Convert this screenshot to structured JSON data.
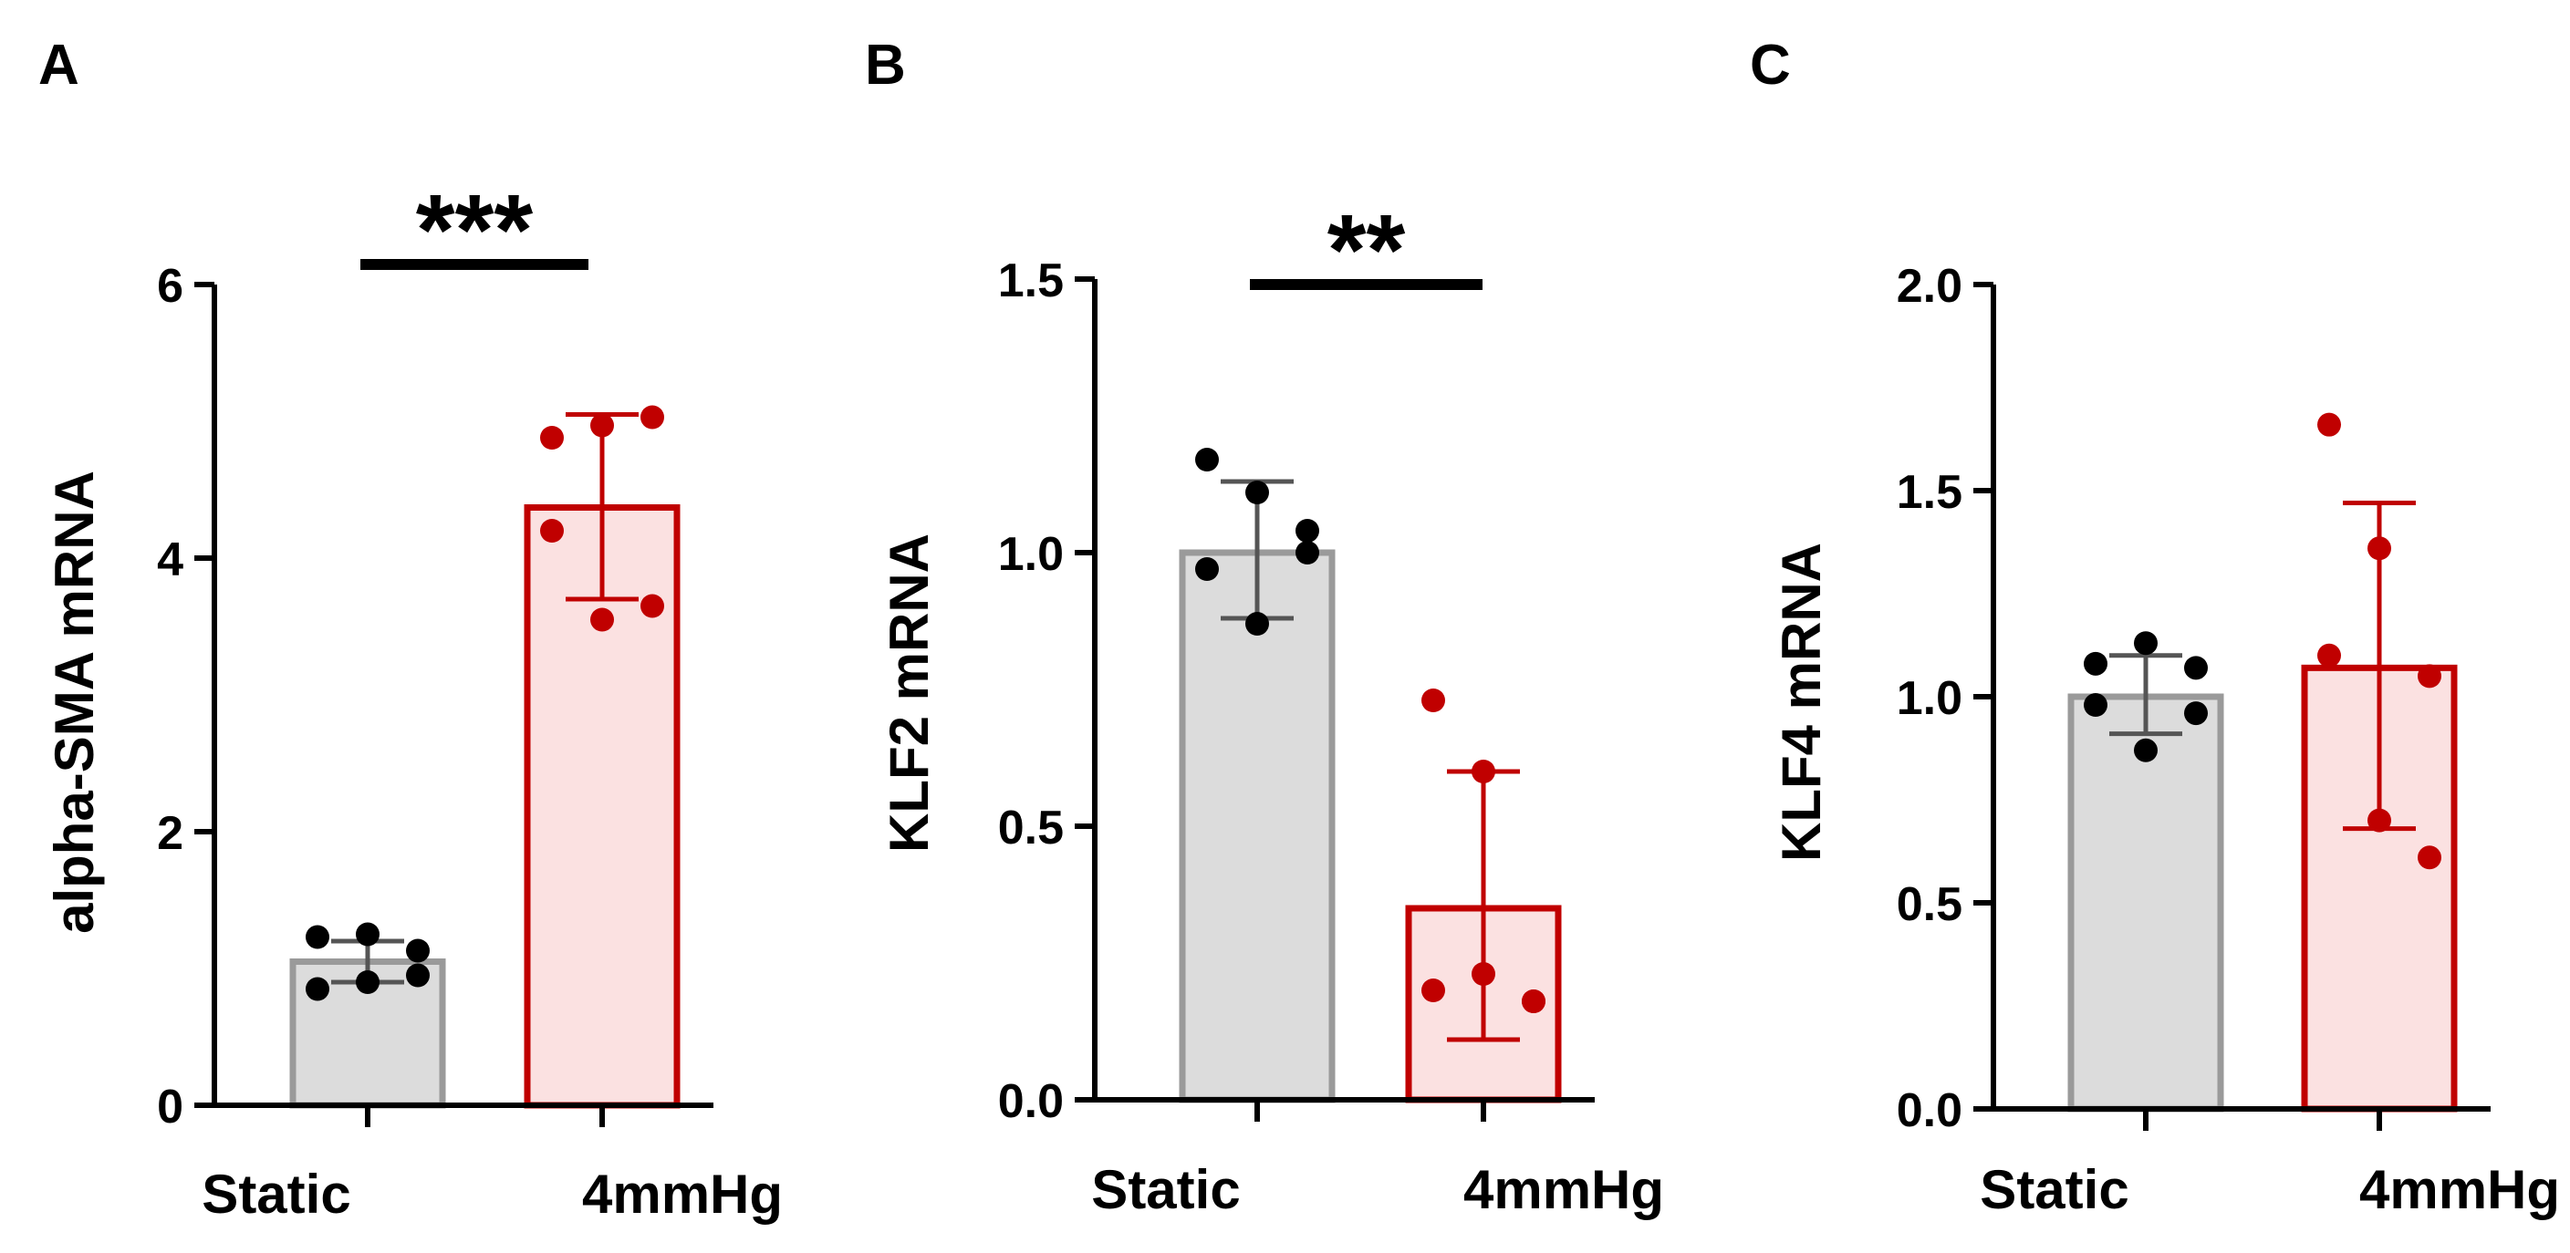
{
  "chart_data": [
    {
      "type": "bar",
      "panel": "A",
      "ylabel": "alpha-SMA mRNA",
      "ylim": [
        0,
        6
      ],
      "yticks": [
        0,
        2,
        4,
        6
      ],
      "categories": [
        "Static",
        "4mmHg"
      ],
      "significance": "***",
      "bars": [
        {
          "name": "Static",
          "mean": 1.05,
          "err_low": 0.9,
          "err_high": 1.2,
          "color_fill": "#dcdcdc",
          "color_edge": "#9a9a9a",
          "point_color": "#000000",
          "points": [
            1.23,
            1.25,
            1.13,
            0.85,
            0.9,
            0.95
          ]
        },
        {
          "name": "4mmHg",
          "mean": 4.37,
          "err_low": 3.7,
          "err_high": 5.05,
          "color_fill": "#fbe1e1",
          "color_edge": "#c00000",
          "point_color": "#c00000",
          "points": [
            4.88,
            4.97,
            5.03,
            4.2,
            3.55,
            3.65
          ]
        }
      ]
    },
    {
      "type": "bar",
      "panel": "B",
      "ylabel": "KLF2 mRNA",
      "ylim": [
        0,
        1.5
      ],
      "yticks": [
        0.0,
        0.5,
        1.0,
        1.5
      ],
      "ytick_labels": [
        "0.0",
        "0.5",
        "1.0",
        "1.5"
      ],
      "categories": [
        "Static",
        "4mmHg"
      ],
      "significance": "**",
      "bars": [
        {
          "name": "Static",
          "mean": 1.0,
          "err_low": 0.88,
          "err_high": 1.13,
          "color_fill": "#dcdcdc",
          "color_edge": "#9a9a9a",
          "point_color": "#000000",
          "points": [
            1.17,
            1.11,
            1.04,
            0.97,
            0.87,
            1.0
          ]
        },
        {
          "name": "4mmHg",
          "mean": 0.35,
          "err_low": 0.11,
          "err_high": 0.6,
          "color_fill": "#fbe1e1",
          "color_edge": "#c00000",
          "point_color": "#c00000",
          "points": [
            0.73,
            0.6,
            0.18,
            0.2,
            0.23,
            0.18
          ]
        }
      ]
    },
    {
      "type": "bar",
      "panel": "C",
      "ylabel": "KLF4 mRNA",
      "ylim": [
        0,
        2.0
      ],
      "yticks": [
        0.0,
        0.5,
        1.0,
        1.5,
        2.0
      ],
      "ytick_labels": [
        "0.0",
        "0.5",
        "1.0",
        "1.5",
        "2.0"
      ],
      "categories": [
        "Static",
        "4mmHg"
      ],
      "significance": "",
      "bars": [
        {
          "name": "Static",
          "mean": 1.0,
          "err_low": 0.91,
          "err_high": 1.1,
          "color_fill": "#dcdcdc",
          "color_edge": "#9a9a9a",
          "point_color": "#000000",
          "points": [
            1.08,
            1.13,
            1.07,
            0.98,
            0.87,
            0.96
          ]
        },
        {
          "name": "4mmHg",
          "mean": 1.07,
          "err_low": 0.68,
          "err_high": 1.47,
          "color_fill": "#fbe1e1",
          "color_edge": "#c00000",
          "point_color": "#c00000",
          "points": [
            1.66,
            1.36,
            1.05,
            1.1,
            0.7,
            0.61
          ]
        }
      ]
    }
  ]
}
